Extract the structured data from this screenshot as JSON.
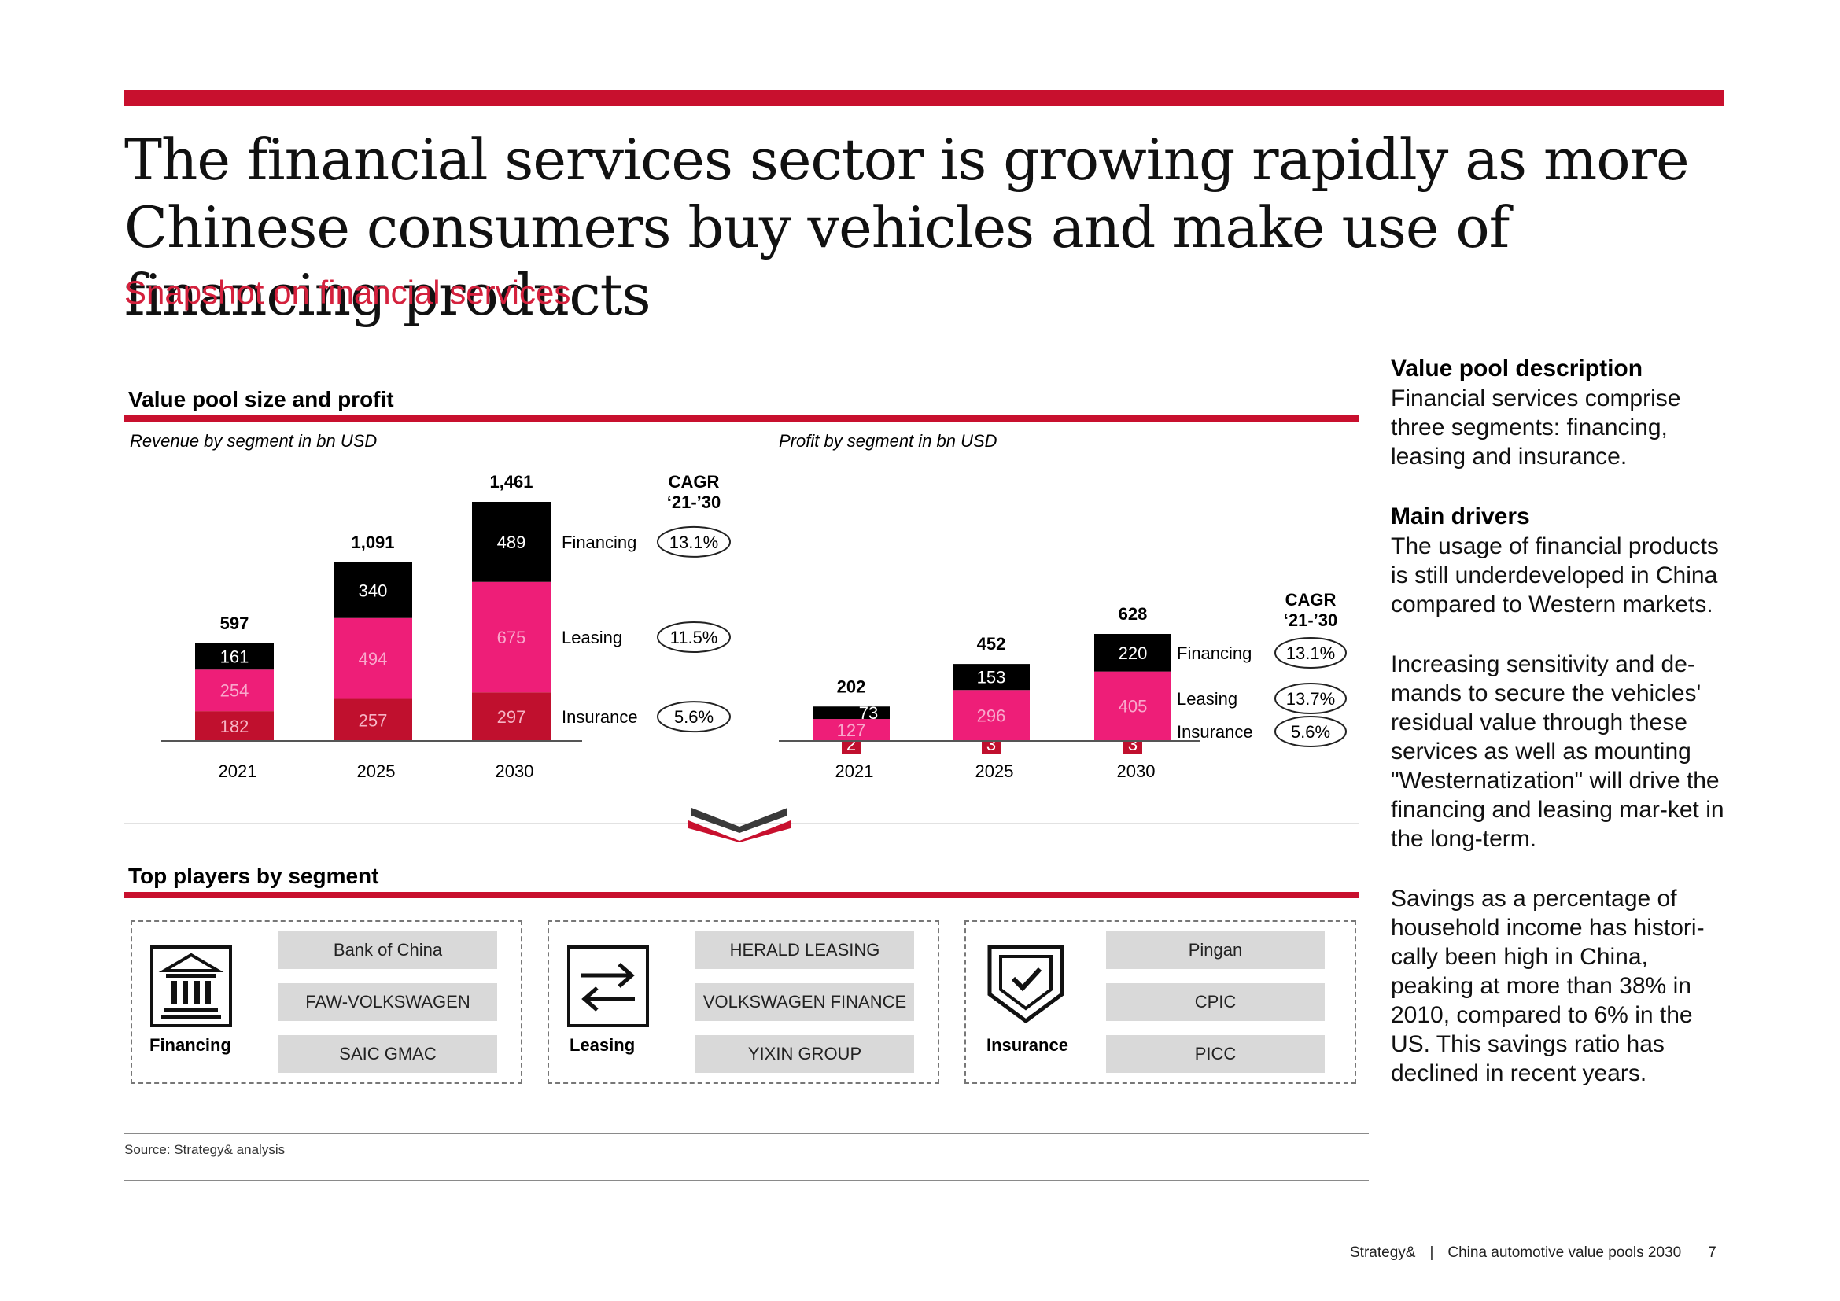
{
  "header": {
    "title": "The financial services sector is growing rapidly as more Chinese consumers buy vehicles and make use of financing products",
    "subtitle": "Snapshot on financial services"
  },
  "value_pool": {
    "heading": "Value pool size and profit",
    "revenue_caption": "Revenue by segment in bn USD",
    "profit_caption": "Profit by segment in bn USD"
  },
  "chart_data": [
    {
      "type": "bar",
      "stacked": true,
      "title": "Revenue by segment in bn USD",
      "categories": [
        "2021",
        "2025",
        "2030"
      ],
      "series": [
        {
          "name": "Insurance",
          "values": [
            182,
            257,
            297
          ],
          "cagr": "5.6%",
          "color": "#c0102e"
        },
        {
          "name": "Leasing",
          "values": [
            254,
            494,
            675
          ],
          "cagr": "11.5%",
          "color": "#ee1e78"
        },
        {
          "name": "Financing",
          "values": [
            161,
            340,
            489
          ],
          "cagr": "13.1%",
          "color": "#000000"
        }
      ],
      "totals": [
        "597",
        "1,091",
        "1,461"
      ],
      "cagr_title": [
        "CAGR",
        "‘21-’30"
      ],
      "ylim": [
        0,
        1461
      ]
    },
    {
      "type": "bar",
      "stacked": true,
      "title": "Profit by segment in bn USD",
      "categories": [
        "2021",
        "2025",
        "2030"
      ],
      "series": [
        {
          "name": "Insurance",
          "values": [
            2,
            3,
            3
          ],
          "cagr": "5.6%",
          "color": "#c0102e"
        },
        {
          "name": "Leasing",
          "values": [
            127,
            296,
            405
          ],
          "cagr": "13.7%",
          "color": "#ee1e78"
        },
        {
          "name": "Financing",
          "values": [
            73,
            153,
            220
          ],
          "cagr": "13.1%",
          "color": "#000000"
        }
      ],
      "totals": [
        "202",
        "452",
        "628"
      ],
      "cagr_title": [
        "CAGR",
        "‘21-’30"
      ],
      "ylim": [
        0,
        628
      ]
    }
  ],
  "players": {
    "heading": "Top players by segment",
    "segments": [
      {
        "label": "Financing",
        "icon": "bank-icon",
        "names": [
          "Bank of China",
          "FAW-VOLKSWAGEN",
          "SAIC GMAC"
        ]
      },
      {
        "label": "Leasing",
        "icon": "exchange-arrows-icon",
        "names": [
          "HERALD LEASING",
          "VOLKSWAGEN FINANCE",
          "YIXIN GROUP"
        ]
      },
      {
        "label": "Insurance",
        "icon": "shield-check-icon",
        "names": [
          "Pingan",
          "CPIC",
          "PICC"
        ]
      }
    ]
  },
  "sidebar": {
    "desc_heading": "Value pool description",
    "desc_text": "Financial services comprise three segments: financing, leasing and insurance.",
    "drivers_heading": "Main drivers",
    "driver_1": "The usage of financial products is still underdeveloped in China compared to Western markets.",
    "driver_2": "Increasing sensitivity and de-mands to secure the vehicles' residual value through these services as well as mounting \"Westernatization\" will drive the financing and leasing mar-ket in the long-term.",
    "driver_3": "Savings as a percentage of household income has histori-cally been high in China, peaking at more than 38% in 2010, compared to 6% in the US. This savings ratio has declined in recent years."
  },
  "source": "Source: Strategy& analysis",
  "footer": {
    "brand": "Strategy&",
    "separator": "|",
    "publication": "China automotive value pools 2030",
    "page": "7"
  }
}
